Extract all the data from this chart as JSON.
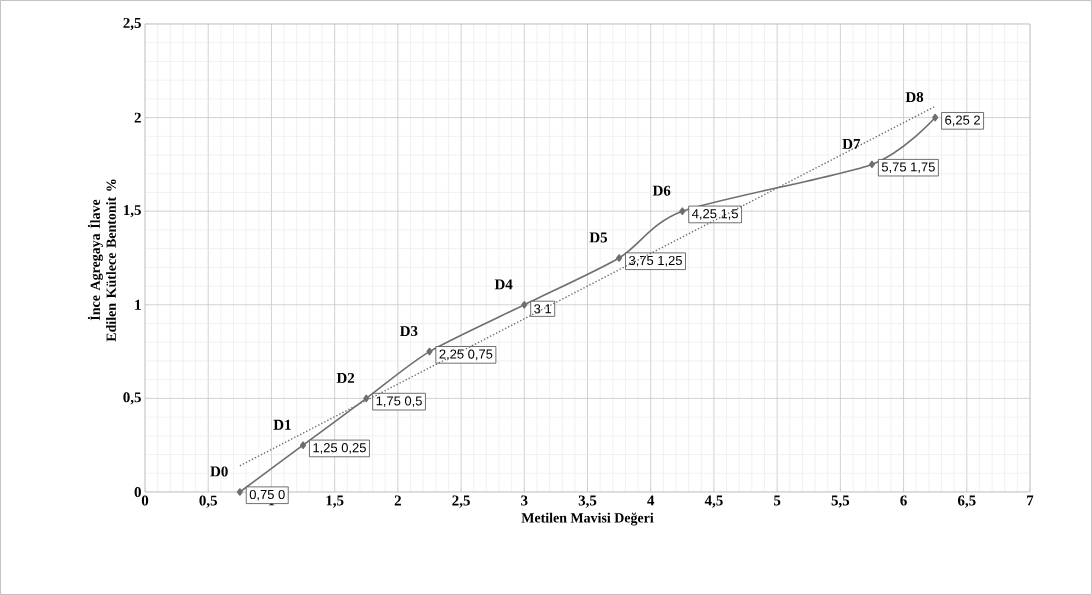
{
  "chart_data": {
    "type": "line",
    "xlabel": "Metilen Mavisi Değeri",
    "ylabel": "İnce Agregaya İlave Edilen Kütlece Bentonit %",
    "x": [
      0.75,
      1.25,
      1.75,
      2.25,
      3,
      3.75,
      4.25,
      5.75,
      6.25
    ],
    "series": [
      {
        "color": "#6e6e6e",
        "values": [
          0,
          0.25,
          0.5,
          0.75,
          1,
          1.25,
          1.5,
          1.75,
          2
        ],
        "marker": "diamond",
        "line_style": "solid",
        "value_labels": [
          "0,75 0",
          "1,25 0,25",
          "1,75 0,5",
          "2,25 0,75",
          "3 1",
          "3,75 1,25",
          "4,25 1,5",
          "5,75 1,75",
          "6,25 2"
        ]
      },
      {
        "color": "#6e6e6e",
        "x": [
          0.75,
          6.25
        ],
        "values": [
          0.14,
          2.06
        ],
        "marker": "none",
        "line_style": "dotted"
      }
    ],
    "xlim": [
      0,
      7
    ],
    "ylim": [
      0,
      2.5
    ],
    "xticks": [
      0,
      {
        "value": 0.5,
        "label": "0,5"
      },
      1,
      {
        "value": 1.5,
        "label": "1,5"
      },
      2,
      {
        "value": 2.5,
        "label": "2,5"
      },
      3,
      {
        "value": 3.5,
        "label": "3,5"
      },
      4,
      {
        "value": 4.5,
        "label": "4,5"
      },
      5,
      {
        "value": 5.5,
        "label": "5,5"
      },
      6,
      {
        "value": 6.5,
        "label": "6,5"
      },
      7
    ],
    "yticks": [
      0,
      {
        "value": 0.5,
        "label": "0,5"
      },
      1,
      {
        "value": 1.5,
        "label": "1,5"
      },
      2,
      {
        "value": 2.5,
        "label": "2,5"
      }
    ],
    "grid": true,
    "legend": false,
    "annotations": [
      {
        "text": "D0",
        "x": 0.75,
        "y": 0
      },
      {
        "text": "D1",
        "x": 1.25,
        "y": 0.25
      },
      {
        "text": "D2",
        "x": 1.75,
        "y": 0.5
      },
      {
        "text": "D3",
        "x": 2.25,
        "y": 0.75
      },
      {
        "text": "D4",
        "x": 3,
        "y": 1
      },
      {
        "text": "D5",
        "x": 3.75,
        "y": 1.25
      },
      {
        "text": "D6",
        "x": 4.25,
        "y": 1.5
      },
      {
        "text": "D7",
        "x": 5.75,
        "y": 1.75
      },
      {
        "text": "D8",
        "x": 6.25,
        "y": 2
      }
    ]
  }
}
